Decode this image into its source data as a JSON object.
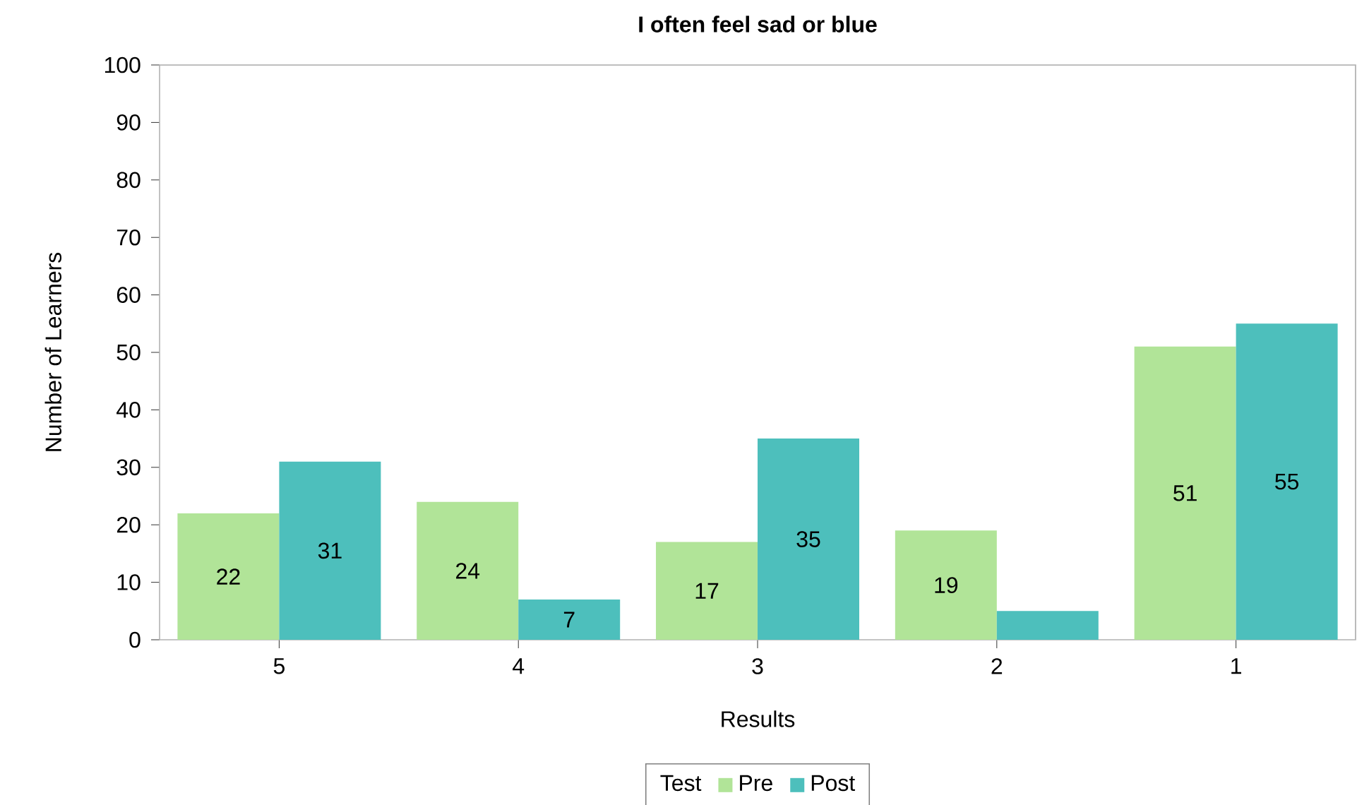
{
  "chart_data": {
    "type": "bar",
    "title": "I often feel sad or blue",
    "xlabel": "Results",
    "ylabel": "Number of Learners",
    "legend_title": "Test",
    "categories": [
      "5",
      "4",
      "3",
      "2",
      "1"
    ],
    "series": [
      {
        "name": "Pre",
        "color": "#b1e498",
        "values": [
          22,
          24,
          17,
          19,
          51
        ],
        "value_labels": [
          "22",
          "24",
          "17",
          "19",
          "51"
        ]
      },
      {
        "name": "Post",
        "color": "#4dbfbc",
        "values": [
          31,
          7,
          35,
          5,
          55
        ],
        "value_labels": [
          "31",
          "7",
          "35",
          null,
          "55"
        ]
      }
    ],
    "ylim": [
      0,
      100
    ],
    "yticks": [
      0,
      10,
      20,
      30,
      40,
      50,
      60,
      70,
      80,
      90,
      100
    ],
    "legend": "bottom",
    "grid": false
  }
}
